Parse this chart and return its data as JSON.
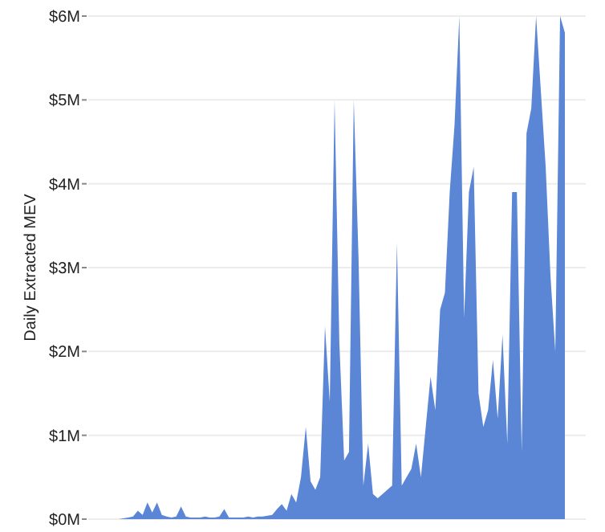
{
  "chart_data": {
    "type": "area",
    "ylabel": "Daily Extracted MEV",
    "categories": [
      null,
      null,
      null,
      null,
      null,
      null,
      null,
      null,
      null,
      null,
      null,
      null,
      null,
      null,
      null,
      null,
      null,
      null,
      null,
      null,
      null,
      null,
      null,
      null,
      null,
      null,
      null,
      null,
      null,
      null,
      null,
      null,
      null,
      null,
      null,
      null,
      null,
      null,
      null,
      null,
      null,
      null,
      null,
      null,
      null,
      null,
      null,
      null,
      null,
      null,
      null,
      null,
      null,
      null,
      null,
      null,
      null,
      null,
      null,
      null,
      null,
      null,
      null,
      null,
      null,
      null,
      null,
      null,
      null,
      null,
      null,
      null,
      null,
      null,
      null,
      null,
      null,
      null,
      null,
      null,
      null,
      null,
      null,
      null,
      null,
      null,
      null,
      null,
      null,
      null,
      null,
      null,
      null,
      null,
      null,
      null,
      null,
      null,
      null,
      null
    ],
    "series": [
      {
        "color": "#5b86d6",
        "values": [
          0,
          0,
          0,
          0,
          0,
          0,
          0,
          0.01,
          0.02,
          0.03,
          0.1,
          0.05,
          0.2,
          0.08,
          0.2,
          0.05,
          0.03,
          0.02,
          0.03,
          0.15,
          0.03,
          0.02,
          0.02,
          0.02,
          0.03,
          0.02,
          0.02,
          0.03,
          0.12,
          0.02,
          0.02,
          0.02,
          0.02,
          0.03,
          0.02,
          0.03,
          0.03,
          0.04,
          0.05,
          0.12,
          0.18,
          0.1,
          0.3,
          0.2,
          0.5,
          1.1,
          0.45,
          0.35,
          0.5,
          2.3,
          1.4,
          5.0,
          2.1,
          0.7,
          0.8,
          5.0,
          3.1,
          0.4,
          0.9,
          0.3,
          0.25,
          0.3,
          0.35,
          0.4,
          3.3,
          0.4,
          0.5,
          0.6,
          0.9,
          0.5,
          1.1,
          1.7,
          1.3,
          2.5,
          2.7,
          3.9,
          4.7,
          6.0,
          2.4,
          3.9,
          4.2,
          1.5,
          1.1,
          1.3,
          1.9,
          1.2,
          2.2,
          0.9,
          3.9,
          3.9,
          0.8,
          4.6,
          4.9,
          6.0,
          5.1,
          4.2,
          2.9,
          2.0,
          6.0,
          5.8
        ]
      }
    ],
    "ylim": [
      0,
      6
    ],
    "yticks": [
      {
        "value": 0,
        "label": "$0M"
      },
      {
        "value": 1,
        "label": "$1M"
      },
      {
        "value": 2,
        "label": "$2M"
      },
      {
        "value": 3,
        "label": "$3M"
      },
      {
        "value": 4,
        "label": "$4M"
      },
      {
        "value": 5,
        "label": "$5M"
      },
      {
        "value": 6,
        "label": "$6M"
      }
    ],
    "grid": "y",
    "tick_labels": "y"
  }
}
